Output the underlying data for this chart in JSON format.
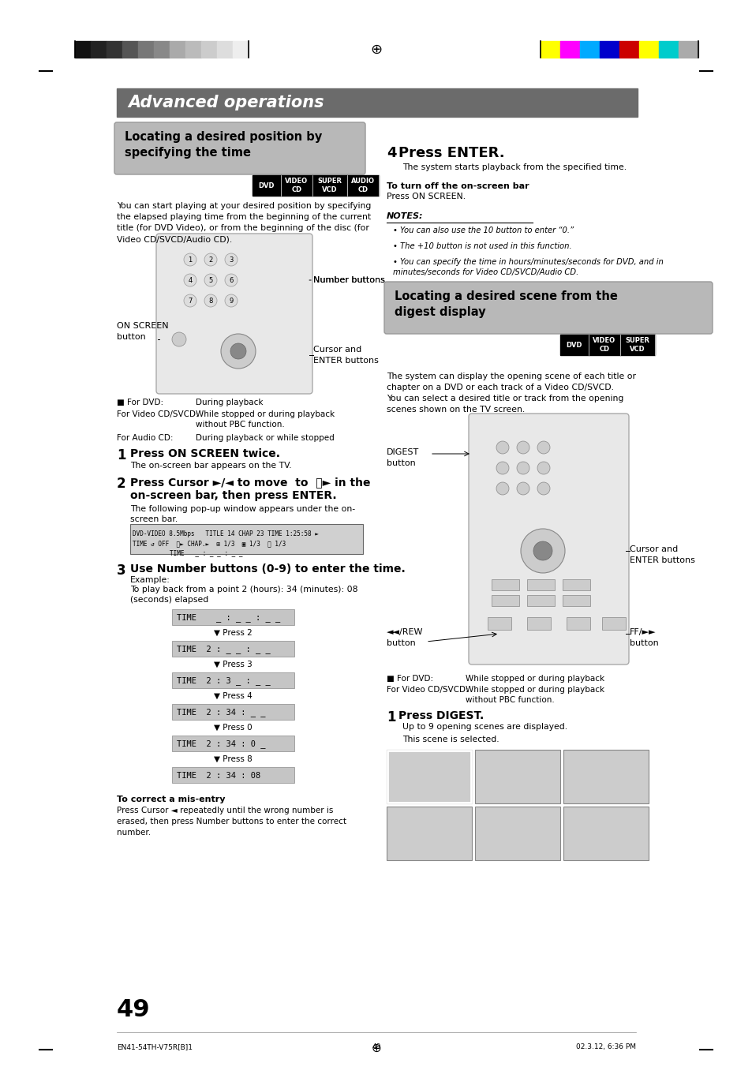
{
  "page_bg": "#ffffff",
  "header_bar_color": "#6b6b6b",
  "header_text": "Advanced operations",
  "header_text_color": "#ffffff",
  "section1_title": "Locating a desired position by\nspecifying the time",
  "section2_title": "Locating a desired scene from the\ndigest display",
  "grayscale_bar_colors": [
    "#111111",
    "#222222",
    "#333333",
    "#555555",
    "#777777",
    "#888888",
    "#aaaaaa",
    "#bbbbbb",
    "#cccccc",
    "#dddddd",
    "#eeeeee"
  ],
  "color_bar_colors": [
    "#ffff00",
    "#ff00ff",
    "#00aaff",
    "#0000cc",
    "#cc0000",
    "#ffff00",
    "#00cccc",
    "#aaaaaa"
  ],
  "page_number": "49",
  "footer_left": "EN41-54TH-V75R[B]1",
  "footer_center": "49",
  "footer_right": "02.3.12, 6:36 PM",
  "body1": "You can start playing at your desired position by specifying\nthe elapsed playing time from the beginning of the current\ntitle (for DVD Video), or from the beginning of the disc (for\nVideo CD/SVCD/Audio CD).",
  "body2": "The system can display the opening scene of each title or\nchapter on a DVD or each track of a Video CD/SVCD.\nYou can select a desired title or track from the opening\nscenes shown on the TV screen.",
  "notes": [
    "You can also use the 10 button to enter “0.”",
    "The +10 button is not used in this function.",
    "You can specify the time in hours/minutes/seconds for DVD, and in\nminutes/seconds for Video CD/SVCD/Audio CD."
  ],
  "time_entries": [
    "TIME    _ : _ _ : _ _",
    "TIME  2 : _ _ : _ _",
    "TIME  2 : 3 _ : _ _",
    "TIME  2 : 34 : _ _",
    "TIME  2 : 34 : 0 _",
    "TIME  2 : 34 : 08"
  ],
  "press_labels": [
    "Press 2",
    "Press 3",
    "Press 4",
    "Press 0",
    "Press 8"
  ]
}
